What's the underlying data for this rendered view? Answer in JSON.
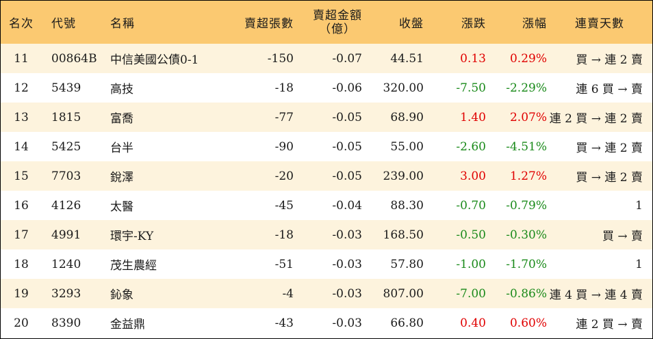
{
  "colors": {
    "header_bg": "#fbc971",
    "stripe_bg": "#fdf3dd",
    "up": "#e00000",
    "down": "#1a8a1a"
  },
  "headers": {
    "rank": "名次",
    "code": "代號",
    "name": "名稱",
    "net_sell_shares": "賣超張數",
    "net_sell_amount_line1": "賣超金額",
    "net_sell_amount_line2": "（億）",
    "close": "收盤",
    "change": "漲跌",
    "change_pct": "漲幅",
    "streak": "連賣天數"
  },
  "rows": [
    {
      "rank": "11",
      "code": "00864B",
      "name": "中信美國公債0-1",
      "shares": "-150",
      "amount": "-0.07",
      "close": "44.51",
      "change": "0.13",
      "pct": "0.29%",
      "dir": "up",
      "streak": "買 → 連 2 賣"
    },
    {
      "rank": "12",
      "code": "5439",
      "name": "高技",
      "shares": "-18",
      "amount": "-0.06",
      "close": "320.00",
      "change": "-7.50",
      "pct": "-2.29%",
      "dir": "down",
      "streak": "連 6 買 → 賣"
    },
    {
      "rank": "13",
      "code": "1815",
      "name": "富喬",
      "shares": "-77",
      "amount": "-0.05",
      "close": "68.90",
      "change": "1.40",
      "pct": "2.07%",
      "dir": "up",
      "streak": "連 2 買 → 連 2 賣"
    },
    {
      "rank": "14",
      "code": "5425",
      "name": "台半",
      "shares": "-90",
      "amount": "-0.05",
      "close": "55.00",
      "change": "-2.60",
      "pct": "-4.51%",
      "dir": "down",
      "streak": "買 → 連 2 賣"
    },
    {
      "rank": "15",
      "code": "7703",
      "name": "銳澤",
      "shares": "-20",
      "amount": "-0.05",
      "close": "239.00",
      "change": "3.00",
      "pct": "1.27%",
      "dir": "up",
      "streak": "買 → 連 2 賣"
    },
    {
      "rank": "16",
      "code": "4126",
      "name": "太醫",
      "shares": "-45",
      "amount": "-0.04",
      "close": "88.30",
      "change": "-0.70",
      "pct": "-0.79%",
      "dir": "down",
      "streak": "1"
    },
    {
      "rank": "17",
      "code": "4991",
      "name": "環宇-KY",
      "shares": "-18",
      "amount": "-0.03",
      "close": "168.50",
      "change": "-0.50",
      "pct": "-0.30%",
      "dir": "down",
      "streak": "買 → 賣"
    },
    {
      "rank": "18",
      "code": "1240",
      "name": "茂生農經",
      "shares": "-51",
      "amount": "-0.03",
      "close": "57.80",
      "change": "-1.00",
      "pct": "-1.70%",
      "dir": "down",
      "streak": "1"
    },
    {
      "rank": "19",
      "code": "3293",
      "name": "鈊象",
      "shares": "-4",
      "amount": "-0.03",
      "close": "807.00",
      "change": "-7.00",
      "pct": "-0.86%",
      "dir": "down",
      "streak": "連 4 買 → 連 4 賣"
    },
    {
      "rank": "20",
      "code": "8390",
      "name": "金益鼎",
      "shares": "-43",
      "amount": "-0.03",
      "close": "66.80",
      "change": "0.40",
      "pct": "0.60%",
      "dir": "up",
      "streak": "連 2 買 → 賣"
    }
  ]
}
